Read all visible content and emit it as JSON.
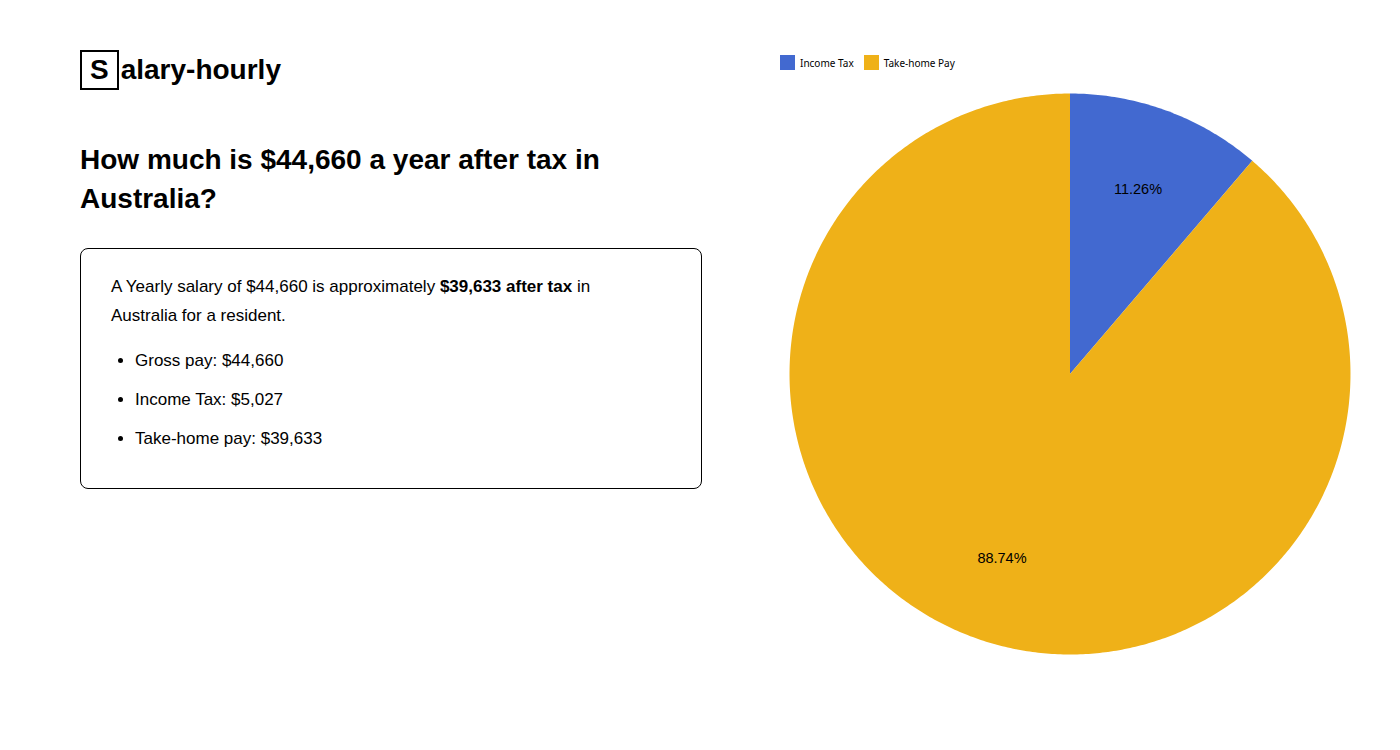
{
  "chart_data": {
    "type": "pie",
    "title": "How much is $44,660 a year after tax in Australia?",
    "categories": [
      "Income Tax",
      "Take-home Pay"
    ],
    "values": [
      11.26,
      88.74
    ],
    "value_labels": [
      "11.26%",
      "88.74%"
    ],
    "data_labels": true,
    "legend": "top",
    "annotations": [
      "S",
      "alary-hourly",
      "A Yearly salary of $44,660 is approximately ",
      "$39,633 after tax",
      " in",
      "Australia for a resident.",
      "Gross pay: $44,660",
      "Income Tax: $5,027",
      "Take-home pay: $39,633"
    ]
  }
}
